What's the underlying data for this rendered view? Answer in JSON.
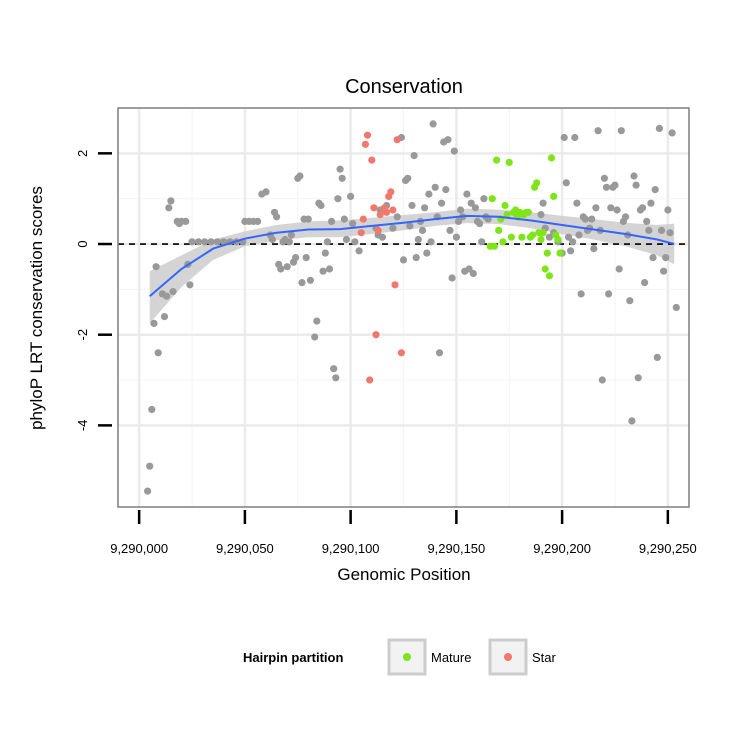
{
  "chart_data": {
    "type": "scatter",
    "title": "Conservation",
    "xlabel": "Genomic Position",
    "ylabel": "phyloP LRT conservation scores",
    "xlim": [
      9289990,
      9290260
    ],
    "ylim": [
      -5.8,
      3.0
    ],
    "x_ticks": [
      9290000,
      9290050,
      9290100,
      9290150,
      9290200,
      9290250
    ],
    "x_tick_labels": [
      "9,290,000",
      "9,290,050",
      "9,290,100",
      "9,290,150",
      "9,290,200",
      "9,290,250"
    ],
    "y_ticks": [
      -4,
      -2,
      0,
      2
    ],
    "y_tick_labels": [
      "-4",
      "-2",
      "0",
      "2"
    ],
    "reference_line": {
      "y": 0,
      "style": "dashed",
      "color": "#000000"
    },
    "colors": {
      "other": "#999999",
      "mature": "#7FE51A",
      "star": "#F2776D",
      "smooth": "#3366FF",
      "band": "#cccccc",
      "grid": "#ebebeb",
      "frame": "#7f7f7f"
    },
    "legend": {
      "title": "Hairpin partition",
      "position": "bottom",
      "entries": [
        {
          "label": "Mature",
          "color": "#7FE51A"
        },
        {
          "label": "Star",
          "color": "#F2776D"
        }
      ]
    },
    "smooth": {
      "x": [
        9290005,
        9290020,
        9290035,
        9290050,
        9290065,
        9290080,
        9290095,
        9290110,
        9290125,
        9290140,
        9290155,
        9290170,
        9290185,
        9290200,
        9290215,
        9290230,
        9290245,
        9290253
      ],
      "y": [
        -1.15,
        -0.55,
        -0.1,
        0.12,
        0.25,
        0.32,
        0.33,
        0.4,
        0.47,
        0.55,
        0.62,
        0.6,
        0.52,
        0.42,
        0.32,
        0.22,
        0.1,
        0.0
      ],
      "se_upper": [
        -0.6,
        -0.25,
        0.1,
        0.28,
        0.42,
        0.5,
        0.52,
        0.58,
        0.64,
        0.7,
        0.78,
        0.76,
        0.7,
        0.62,
        0.55,
        0.47,
        0.42,
        0.45
      ],
      "se_lower": [
        -1.75,
        -0.95,
        -0.35,
        -0.05,
        0.08,
        0.15,
        0.15,
        0.22,
        0.3,
        0.4,
        0.46,
        0.44,
        0.35,
        0.22,
        0.1,
        -0.05,
        -0.25,
        -0.45
      ]
    },
    "series": [
      {
        "name": "other",
        "points": [
          [
            9290004,
            -5.45
          ],
          [
            9290005,
            -4.9
          ],
          [
            9290006,
            -3.65
          ],
          [
            9290007,
            -1.75
          ],
          [
            9290008,
            -0.5
          ],
          [
            9290009,
            -2.4
          ],
          [
            9290011,
            -1.1
          ],
          [
            9290012,
            -1.6
          ],
          [
            9290013,
            -1.15
          ],
          [
            9290014,
            0.8
          ],
          [
            9290015,
            0.95
          ],
          [
            9290016,
            -1.05
          ],
          [
            9290018,
            0.5
          ],
          [
            9290019,
            0.45
          ],
          [
            9290020,
            0.5
          ],
          [
            9290022,
            0.5
          ],
          [
            9290023,
            -0.45
          ],
          [
            9290024,
            -0.9
          ],
          [
            9290025,
            0.05
          ],
          [
            9290028,
            0.05
          ],
          [
            9290031,
            0.05
          ],
          [
            9290034,
            0.05
          ],
          [
            9290037,
            0.05
          ],
          [
            9290040,
            0.05
          ],
          [
            9290043,
            0.05
          ],
          [
            9290046,
            0.05
          ],
          [
            9290049,
            0.05
          ],
          [
            9290050,
            0.5
          ],
          [
            9290052,
            0.5
          ],
          [
            9290054,
            0.5
          ],
          [
            9290056,
            0.5
          ],
          [
            9290058,
            1.1
          ],
          [
            9290060,
            1.15
          ],
          [
            9290062,
            0.2
          ],
          [
            9290063,
            0.1
          ],
          [
            9290064,
            0.7
          ],
          [
            9290065,
            0.6
          ],
          [
            9290066,
            -0.45
          ],
          [
            9290067,
            -0.55
          ],
          [
            9290068,
            0.05
          ],
          [
            9290069,
            0.1
          ],
          [
            9290070,
            -0.5
          ],
          [
            9290071,
            0.05
          ],
          [
            9290072,
            0.2
          ],
          [
            9290073,
            -0.4
          ],
          [
            9290074,
            -0.3
          ],
          [
            9290075,
            1.45
          ],
          [
            9290076,
            1.5
          ],
          [
            9290077,
            -0.85
          ],
          [
            9290078,
            0.55
          ],
          [
            9290079,
            -0.3
          ],
          [
            9290080,
            0.55
          ],
          [
            9290081,
            -0.8
          ],
          [
            9290083,
            -2.05
          ],
          [
            9290084,
            -1.7
          ],
          [
            9290085,
            0.9
          ],
          [
            9290086,
            0.85
          ],
          [
            9290087,
            -0.6
          ],
          [
            9290088,
            -0.2
          ],
          [
            9290089,
            0.05
          ],
          [
            9290090,
            -0.55
          ],
          [
            9290091,
            0.5
          ],
          [
            9290092,
            -2.75
          ],
          [
            9290093,
            -2.95
          ],
          [
            9290094,
            1.0
          ],
          [
            9290095,
            1.65
          ],
          [
            9290096,
            1.45
          ],
          [
            9290097,
            0.55
          ],
          [
            9290098,
            0.1
          ],
          [
            9290100,
            1.05
          ],
          [
            9290101,
            0.45
          ],
          [
            9290102,
            0.05
          ],
          [
            9290104,
            -0.15
          ],
          [
            9290112,
            0.35
          ],
          [
            9290113,
            0.2
          ],
          [
            9290114,
            0.75
          ],
          [
            9290115,
            0.15
          ],
          [
            9290117,
            0.85
          ],
          [
            9290120,
            0.35
          ],
          [
            9290122,
            0.6
          ],
          [
            9290124,
            2.35
          ],
          [
            9290125,
            -0.35
          ],
          [
            9290126,
            1.4
          ],
          [
            9290127,
            1.45
          ],
          [
            9290128,
            0.4
          ],
          [
            9290129,
            0.85
          ],
          [
            9290130,
            1.95
          ],
          [
            9290131,
            -0.3
          ],
          [
            9290132,
            0.1
          ],
          [
            9290133,
            0.5
          ],
          [
            9290134,
            0.3
          ],
          [
            9290135,
            0.8
          ],
          [
            9290136,
            -0.2
          ],
          [
            9290137,
            1.1
          ],
          [
            9290138,
            0.05
          ],
          [
            9290139,
            2.65
          ],
          [
            9290140,
            1.25
          ],
          [
            9290141,
            0.6
          ],
          [
            9290142,
            -2.4
          ],
          [
            9290143,
            0.9
          ],
          [
            9290144,
            2.25
          ],
          [
            9290145,
            1.2
          ],
          [
            9290146,
            2.3
          ],
          [
            9290147,
            0.3
          ],
          [
            9290148,
            -0.75
          ],
          [
            9290149,
            2.05
          ],
          [
            9290150,
            0.15
          ],
          [
            9290151,
            0.5
          ],
          [
            9290152,
            0.75
          ],
          [
            9290153,
            0.6
          ],
          [
            9290154,
            -0.6
          ],
          [
            9290155,
            1.1
          ],
          [
            9290156,
            -0.55
          ],
          [
            9290157,
            0.9
          ],
          [
            9290158,
            -0.65
          ],
          [
            9290159,
            0.8
          ],
          [
            9290160,
            0.5
          ],
          [
            9290161,
            0.45
          ],
          [
            9290162,
            0.05
          ],
          [
            9290163,
            1.0
          ],
          [
            9290164,
            0.6
          ],
          [
            9290165,
            0.55
          ],
          [
            9290190,
            0.65
          ],
          [
            9290191,
            0.9
          ],
          [
            9290192,
            0.35
          ],
          [
            9290194,
            0.15
          ],
          [
            9290196,
            0.25
          ],
          [
            9290198,
            0.05
          ],
          [
            9290200,
            -0.2
          ],
          [
            9290201,
            2.35
          ],
          [
            9290202,
            1.35
          ],
          [
            9290203,
            0.15
          ],
          [
            9290204,
            -0.15
          ],
          [
            9290205,
            0.05
          ],
          [
            9290206,
            2.35
          ],
          [
            9290207,
            0.9
          ],
          [
            9290208,
            0.2
          ],
          [
            9290209,
            -1.1
          ],
          [
            9290210,
            0.6
          ],
          [
            9290211,
            0.55
          ],
          [
            9290212,
            0.3
          ],
          [
            9290213,
            0.35
          ],
          [
            9290214,
            0.55
          ],
          [
            9290215,
            -0.1
          ],
          [
            9290216,
            0.8
          ],
          [
            9290217,
            2.5
          ],
          [
            9290218,
            0.3
          ],
          [
            9290219,
            -3.0
          ],
          [
            9290220,
            1.45
          ],
          [
            9290221,
            1.25
          ],
          [
            9290222,
            -1.1
          ],
          [
            9290223,
            0.8
          ],
          [
            9290224,
            1.25
          ],
          [
            9290225,
            1.3
          ],
          [
            9290226,
            0.75
          ],
          [
            9290227,
            -0.55
          ],
          [
            9290228,
            2.5
          ],
          [
            9290229,
            0.5
          ],
          [
            9290230,
            0.6
          ],
          [
            9290231,
            0.2
          ],
          [
            9290232,
            -1.25
          ],
          [
            9290233,
            -3.9
          ],
          [
            9290234,
            1.5
          ],
          [
            9290235,
            1.3
          ],
          [
            9290236,
            -2.95
          ],
          [
            9290237,
            0.75
          ],
          [
            9290238,
            0.8
          ],
          [
            9290239,
            -0.85
          ],
          [
            9290240,
            0.5
          ],
          [
            9290241,
            0.3
          ],
          [
            9290242,
            0.9
          ],
          [
            9290243,
            -0.3
          ],
          [
            9290244,
            1.2
          ],
          [
            9290245,
            -2.5
          ],
          [
            9290246,
            2.55
          ],
          [
            9290247,
            0.3
          ],
          [
            9290248,
            -0.6
          ],
          [
            9290249,
            -0.3
          ],
          [
            9290250,
            0.75
          ],
          [
            9290251,
            0.25
          ],
          [
            9290252,
            2.45
          ],
          [
            9290254,
            -1.4
          ]
        ]
      },
      {
        "name": "Mature",
        "points": [
          [
            9290166,
            -0.05
          ],
          [
            9290167,
            1.0
          ],
          [
            9290168,
            -0.05
          ],
          [
            9290169,
            1.85
          ],
          [
            9290170,
            0.3
          ],
          [
            9290171,
            0.55
          ],
          [
            9290172,
            0.05
          ],
          [
            9290173,
            0.85
          ],
          [
            9290174,
            0.65
          ],
          [
            9290175,
            1.8
          ],
          [
            9290176,
            0.15
          ],
          [
            9290177,
            0.7
          ],
          [
            9290178,
            0.75
          ],
          [
            9290179,
            0.6
          ],
          [
            9290180,
            0.7
          ],
          [
            9290181,
            0.15
          ],
          [
            9290182,
            0.65
          ],
          [
            9290183,
            0.7
          ],
          [
            9290184,
            0.7
          ],
          [
            9290185,
            0.15
          ],
          [
            9290186,
            0.2
          ],
          [
            9290187,
            1.25
          ],
          [
            9290188,
            1.35
          ],
          [
            9290189,
            0.25
          ],
          [
            9290190,
            0.1
          ],
          [
            9290191,
            0.25
          ],
          [
            9290192,
            -0.55
          ],
          [
            9290193,
            -0.2
          ],
          [
            9290194,
            -0.7
          ],
          [
            9290195,
            1.9
          ],
          [
            9290196,
            1.05
          ],
          [
            9290197,
            0.2
          ],
          [
            9290198,
            0.1
          ],
          [
            9290199,
            -0.2
          ]
        ]
      },
      {
        "name": "Star",
        "points": [
          [
            9290105,
            0.25
          ],
          [
            9290106,
            0.55
          ],
          [
            9290107,
            2.2
          ],
          [
            9290108,
            2.4
          ],
          [
            9290109,
            -3.0
          ],
          [
            9290110,
            1.85
          ],
          [
            9290111,
            0.8
          ],
          [
            9290112,
            -2.0
          ],
          [
            9290113,
            0.3
          ],
          [
            9290114,
            0.65
          ],
          [
            9290116,
            0.8
          ],
          [
            9290117,
            0.7
          ],
          [
            9290118,
            1.05
          ],
          [
            9290119,
            1.15
          ],
          [
            9290120,
            0.75
          ],
          [
            9290121,
            -0.9
          ],
          [
            9290122,
            2.3
          ],
          [
            9290124,
            -2.4
          ]
        ]
      }
    ]
  }
}
